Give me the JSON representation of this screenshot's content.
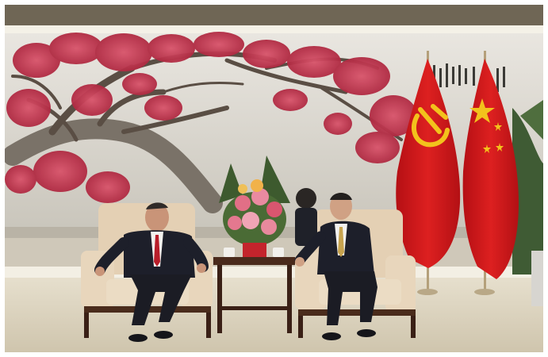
{
  "image": {
    "subject": "photograph",
    "colors": {
      "wall": "#d6d3cb",
      "ceiling_strip": "#7b7160",
      "blossom": "#c43b52",
      "flag_red": "#d21a1c",
      "flag_yellow": "#f3c21c",
      "armchair": "#e6d3b8",
      "armchair_frame": "#4a2c1c",
      "suit": "#1d1f2a",
      "floor": "#d8d0bc"
    },
    "icons": [
      "hammer-sickle-emblem",
      "five-star-emblem"
    ]
  }
}
